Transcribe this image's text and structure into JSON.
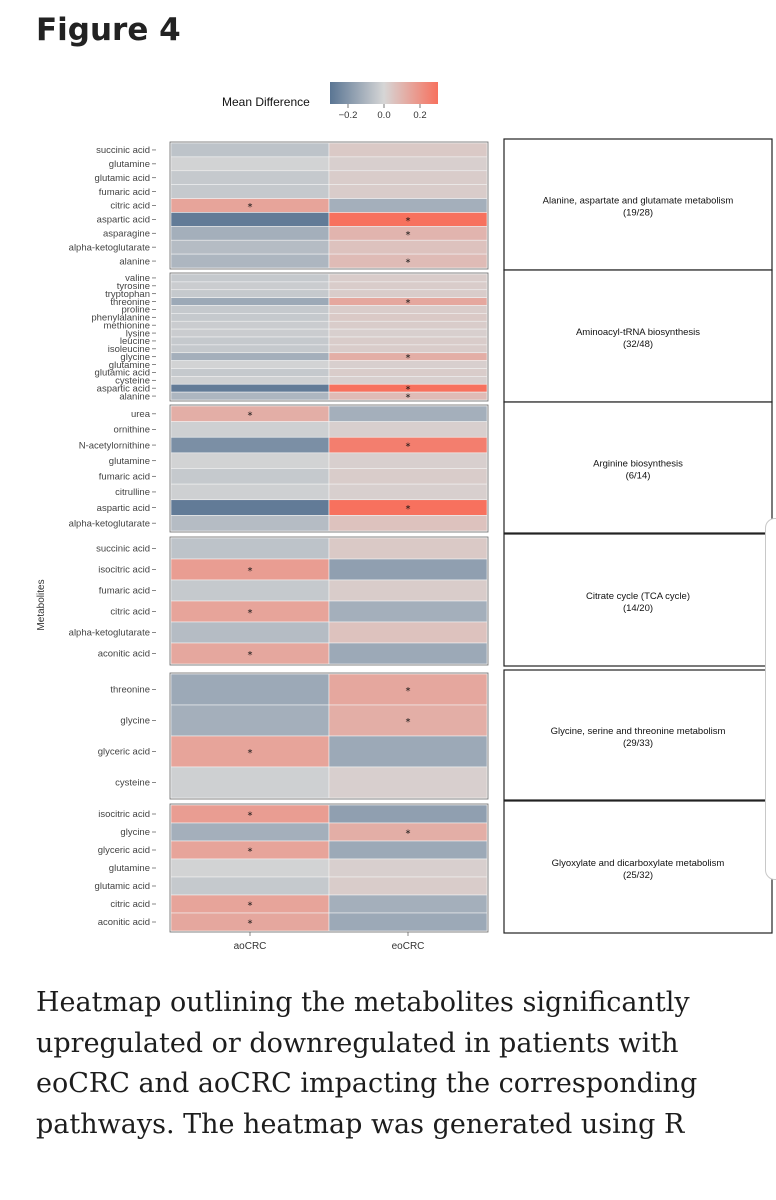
{
  "figure": {
    "title": "Figure 4",
    "caption": "Heatmap outlining the metabolites significantly upregulated or downregulated in patients with eoCRC and aoCRC impacting the corresponding pathways. The heatmap was generated using R"
  },
  "colors": {
    "low": "#5a7593",
    "mid": "#d6d6d6",
    "high": "#f7715e",
    "panel_border": "#666666",
    "box_border": "#222222"
  },
  "chart_data": {
    "type": "heatmap",
    "legend": {
      "title": "Mean Difference",
      "ticks": [
        "−0.2",
        "0.0",
        "0.2"
      ],
      "tick_values": [
        -0.2,
        0,
        0.2
      ],
      "range": [
        -0.3,
        0.3
      ]
    },
    "ylabel": "Metabolites",
    "columns": [
      "aoCRC",
      "eoCRC"
    ],
    "significance_marker": "*",
    "panels": [
      {
        "pathway": "Alanine, aspartate and glutamate metabolism",
        "count": "(19/28)",
        "rows": [
          {
            "name": "succinic acid",
            "values": [
              -0.06,
              0.04
            ],
            "sig": [
              false,
              false
            ]
          },
          {
            "name": "glutamine",
            "values": [
              -0.01,
              0.02
            ],
            "sig": [
              false,
              false
            ]
          },
          {
            "name": "glutamic acid",
            "values": [
              -0.04,
              0.03
            ],
            "sig": [
              false,
              false
            ]
          },
          {
            "name": "fumaric acid",
            "values": [
              -0.04,
              0.03
            ],
            "sig": [
              false,
              false
            ]
          },
          {
            "name": "citric acid",
            "values": [
              0.15,
              -0.12
            ],
            "sig": [
              true,
              false
            ]
          },
          {
            "name": "aspartic acid",
            "values": [
              -0.28,
              0.3
            ],
            "sig": [
              false,
              true
            ]
          },
          {
            "name": "asparagine",
            "values": [
              -0.12,
              0.1
            ],
            "sig": [
              false,
              true
            ]
          },
          {
            "name": "alpha-ketoglutarate",
            "values": [
              -0.08,
              0.06
            ],
            "sig": [
              false,
              false
            ]
          },
          {
            "name": "alanine",
            "values": [
              -0.1,
              0.08
            ],
            "sig": [
              false,
              true
            ]
          }
        ]
      },
      {
        "pathway": "Aminoacyl-tRNA biosynthesis",
        "count": "(32/48)",
        "rows": [
          {
            "name": "valine",
            "values": [
              -0.04,
              0.03
            ],
            "sig": [
              false,
              false
            ]
          },
          {
            "name": "tyrosine",
            "values": [
              -0.03,
              0.03
            ],
            "sig": [
              false,
              false
            ]
          },
          {
            "name": "tryptophan",
            "values": [
              -0.04,
              0.03
            ],
            "sig": [
              false,
              false
            ]
          },
          {
            "name": "threonine",
            "values": [
              -0.14,
              0.14
            ],
            "sig": [
              false,
              true
            ]
          },
          {
            "name": "proline",
            "values": [
              -0.04,
              0.03
            ],
            "sig": [
              false,
              false
            ]
          },
          {
            "name": "phenylalanine",
            "values": [
              -0.04,
              0.04
            ],
            "sig": [
              false,
              false
            ]
          },
          {
            "name": "methionine",
            "values": [
              -0.03,
              0.03
            ],
            "sig": [
              false,
              false
            ]
          },
          {
            "name": "lysine",
            "values": [
              -0.03,
              0.02
            ],
            "sig": [
              false,
              false
            ]
          },
          {
            "name": "leucine",
            "values": [
              -0.04,
              0.03
            ],
            "sig": [
              false,
              false
            ]
          },
          {
            "name": "isoleucine",
            "values": [
              -0.04,
              0.03
            ],
            "sig": [
              false,
              false
            ]
          },
          {
            "name": "glycine",
            "values": [
              -0.12,
              0.12
            ],
            "sig": [
              false,
              true
            ]
          },
          {
            "name": "glutamine",
            "values": [
              -0.01,
              0.02
            ],
            "sig": [
              false,
              false
            ]
          },
          {
            "name": "glutamic acid",
            "values": [
              -0.04,
              0.03
            ],
            "sig": [
              false,
              false
            ]
          },
          {
            "name": "cysteine",
            "values": [
              -0.02,
              0.02
            ],
            "sig": [
              false,
              false
            ]
          },
          {
            "name": "aspartic acid",
            "values": [
              -0.28,
              0.3
            ],
            "sig": [
              false,
              true
            ]
          },
          {
            "name": "alanine",
            "values": [
              -0.1,
              0.08
            ],
            "sig": [
              false,
              true
            ]
          }
        ]
      },
      {
        "pathway": "Arginine biosynthesis",
        "count": "(6/14)",
        "rows": [
          {
            "name": "urea",
            "values": [
              0.12,
              -0.12
            ],
            "sig": [
              true,
              false
            ]
          },
          {
            "name": "ornithine",
            "values": [
              -0.02,
              0.02
            ],
            "sig": [
              false,
              false
            ]
          },
          {
            "name": "N-acetylornithine",
            "values": [
              -0.22,
              0.26
            ],
            "sig": [
              false,
              true
            ]
          },
          {
            "name": "glutamine",
            "values": [
              -0.01,
              0.02
            ],
            "sig": [
              false,
              false
            ]
          },
          {
            "name": "fumaric acid",
            "values": [
              -0.04,
              0.03
            ],
            "sig": [
              false,
              false
            ]
          },
          {
            "name": "citrulline",
            "values": [
              -0.02,
              0.02
            ],
            "sig": [
              false,
              false
            ]
          },
          {
            "name": "aspartic acid",
            "values": [
              -0.28,
              0.3
            ],
            "sig": [
              false,
              true
            ]
          },
          {
            "name": "alpha-ketoglutarate",
            "values": [
              -0.08,
              0.06
            ],
            "sig": [
              false,
              false
            ]
          }
        ]
      },
      {
        "pathway": "Citrate cycle (TCA cycle)",
        "count": "(14/20)",
        "rows": [
          {
            "name": "succinic acid",
            "values": [
              -0.06,
              0.04
            ],
            "sig": [
              false,
              false
            ]
          },
          {
            "name": "isocitric acid",
            "values": [
              0.17,
              -0.17
            ],
            "sig": [
              true,
              false
            ]
          },
          {
            "name": "fumaric acid",
            "values": [
              -0.04,
              0.03
            ],
            "sig": [
              false,
              false
            ]
          },
          {
            "name": "citric acid",
            "values": [
              0.15,
              -0.12
            ],
            "sig": [
              true,
              false
            ]
          },
          {
            "name": "alpha-ketoglutarate",
            "values": [
              -0.08,
              0.06
            ],
            "sig": [
              false,
              false
            ]
          },
          {
            "name": "aconitic acid",
            "values": [
              0.14,
              -0.14
            ],
            "sig": [
              true,
              false
            ]
          }
        ]
      },
      {
        "pathway": "Glycine, serine and threonine metabolism",
        "count": "(29/33)",
        "rows": [
          {
            "name": "threonine",
            "values": [
              -0.14,
              0.14
            ],
            "sig": [
              false,
              true
            ]
          },
          {
            "name": "glycine",
            "values": [
              -0.12,
              0.12
            ],
            "sig": [
              false,
              true
            ]
          },
          {
            "name": "glyceric acid",
            "values": [
              0.15,
              -0.14
            ],
            "sig": [
              true,
              false
            ]
          },
          {
            "name": "cysteine",
            "values": [
              -0.02,
              0.02
            ],
            "sig": [
              false,
              false
            ]
          }
        ]
      },
      {
        "pathway": "Glyoxylate and dicarboxylate metabolism",
        "count": "(25/32)",
        "rows": [
          {
            "name": "isocitric acid",
            "values": [
              0.17,
              -0.17
            ],
            "sig": [
              true,
              false
            ]
          },
          {
            "name": "glycine",
            "values": [
              -0.12,
              0.12
            ],
            "sig": [
              false,
              true
            ]
          },
          {
            "name": "glyceric acid",
            "values": [
              0.15,
              -0.14
            ],
            "sig": [
              true,
              false
            ]
          },
          {
            "name": "glutamine",
            "values": [
              -0.01,
              0.02
            ],
            "sig": [
              false,
              false
            ]
          },
          {
            "name": "glutamic acid",
            "values": [
              -0.04,
              0.03
            ],
            "sig": [
              false,
              false
            ]
          },
          {
            "name": "citric acid",
            "values": [
              0.15,
              -0.12
            ],
            "sig": [
              true,
              false
            ]
          },
          {
            "name": "aconitic acid",
            "values": [
              0.14,
              -0.14
            ],
            "sig": [
              true,
              false
            ]
          }
        ]
      }
    ]
  }
}
